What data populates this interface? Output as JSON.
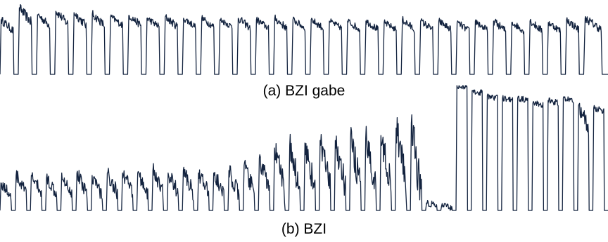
{
  "captions": {
    "a": "(a) BZI gabe",
    "b": "(b) BZI"
  },
  "colors": {
    "line": "#13233f",
    "background": "#ffffff"
  },
  "chart_data": [
    {
      "type": "line",
      "title": "(a) BZI gabe",
      "xlabel": "",
      "ylabel": "",
      "axes_visible": false,
      "grid": false,
      "ylim": [
        0,
        1
      ],
      "cycles": [
        {
          "t0": 0.0,
          "peak": 0.78,
          "floor": 0.62,
          "dip": 0.0
        },
        {
          "t0": 0.03,
          "peak": 0.95,
          "floor": 0.74,
          "dip": 0.0
        },
        {
          "t0": 0.06,
          "peak": 0.85,
          "floor": 0.7,
          "dip": 0.0
        },
        {
          "t0": 0.09,
          "peak": 0.9,
          "floor": 0.72,
          "dip": 0.0
        },
        {
          "t0": 0.12,
          "peak": 0.88,
          "floor": 0.7,
          "dip": 0.0
        },
        {
          "t0": 0.15,
          "peak": 0.86,
          "floor": 0.7,
          "dip": 0.0
        },
        {
          "t0": 0.18,
          "peak": 0.82,
          "floor": 0.7,
          "dip": 0.0
        },
        {
          "t0": 0.21,
          "peak": 0.84,
          "floor": 0.7,
          "dip": 0.0
        },
        {
          "t0": 0.24,
          "peak": 0.8,
          "floor": 0.68,
          "dip": 0.0
        },
        {
          "t0": 0.27,
          "peak": 0.82,
          "floor": 0.68,
          "dip": 0.0
        },
        {
          "t0": 0.3,
          "peak": 0.8,
          "floor": 0.68,
          "dip": 0.0
        },
        {
          "t0": 0.33,
          "peak": 0.8,
          "floor": 0.68,
          "dip": 0.0
        },
        {
          "t0": 0.36,
          "peak": 0.78,
          "floor": 0.68,
          "dip": 0.0
        },
        {
          "t0": 0.39,
          "peak": 0.8,
          "floor": 0.66,
          "dip": 0.0
        },
        {
          "t0": 0.42,
          "peak": 0.78,
          "floor": 0.66,
          "dip": 0.0
        },
        {
          "t0": 0.45,
          "peak": 0.8,
          "floor": 0.66,
          "dip": 0.0
        },
        {
          "t0": 0.48,
          "peak": 0.78,
          "floor": 0.66,
          "dip": 0.0
        },
        {
          "t0": 0.51,
          "peak": 0.78,
          "floor": 0.66,
          "dip": 0.0
        },
        {
          "t0": 0.54,
          "peak": 0.76,
          "floor": 0.66,
          "dip": 0.0
        },
        {
          "t0": 0.57,
          "peak": 0.76,
          "floor": 0.64,
          "dip": 0.0
        },
        {
          "t0": 0.6,
          "peak": 0.76,
          "floor": 0.64,
          "dip": 0.0
        },
        {
          "t0": 0.63,
          "peak": 0.74,
          "floor": 0.64,
          "dip": 0.0
        },
        {
          "t0": 0.66,
          "peak": 0.78,
          "floor": 0.64,
          "dip": 0.0
        },
        {
          "t0": 0.69,
          "peak": 0.76,
          "floor": 0.64,
          "dip": 0.0
        },
        {
          "t0": 0.72,
          "peak": 0.76,
          "floor": 0.64,
          "dip": 0.0
        },
        {
          "t0": 0.75,
          "peak": 0.74,
          "floor": 0.62,
          "dip": 0.0
        },
        {
          "t0": 0.78,
          "peak": 0.76,
          "floor": 0.62,
          "dip": 0.0
        },
        {
          "t0": 0.81,
          "peak": 0.76,
          "floor": 0.62,
          "dip": 0.0
        },
        {
          "t0": 0.84,
          "peak": 0.74,
          "floor": 0.62,
          "dip": 0.0
        },
        {
          "t0": 0.87,
          "peak": 0.76,
          "floor": 0.62,
          "dip": 0.0
        },
        {
          "t0": 0.9,
          "peak": 0.74,
          "floor": 0.62,
          "dip": 0.0
        },
        {
          "t0": 0.93,
          "peak": 0.78,
          "floor": 0.64,
          "dip": 0.0
        },
        {
          "t0": 0.96,
          "peak": 0.8,
          "floor": 0.64,
          "dip": 0.0
        }
      ]
    },
    {
      "type": "line",
      "title": "(b) BZI",
      "xlabel": "",
      "ylabel": "",
      "axes_visible": false,
      "grid": false,
      "ylim": [
        0,
        1
      ],
      "cycles": [
        {
          "t0": 0.0,
          "peak": 0.22,
          "floor": 0.12,
          "dip": 0.0
        },
        {
          "t0": 0.025,
          "peak": 0.28,
          "floor": 0.14,
          "dip": 0.0
        },
        {
          "t0": 0.05,
          "peak": 0.28,
          "floor": 0.14,
          "dip": 0.0
        },
        {
          "t0": 0.075,
          "peak": 0.26,
          "floor": 0.14,
          "dip": 0.0
        },
        {
          "t0": 0.1,
          "peak": 0.3,
          "floor": 0.14,
          "dip": 0.0
        },
        {
          "t0": 0.125,
          "peak": 0.3,
          "floor": 0.14,
          "dip": 0.0
        },
        {
          "t0": 0.15,
          "peak": 0.28,
          "floor": 0.12,
          "dip": 0.0
        },
        {
          "t0": 0.175,
          "peak": 0.3,
          "floor": 0.14,
          "dip": 0.0
        },
        {
          "t0": 0.2,
          "peak": 0.3,
          "floor": 0.14,
          "dip": 0.0
        },
        {
          "t0": 0.225,
          "peak": 0.3,
          "floor": 0.14,
          "dip": 0.0
        },
        {
          "t0": 0.25,
          "peak": 0.32,
          "floor": 0.14,
          "dip": 0.0
        },
        {
          "t0": 0.275,
          "peak": 0.3,
          "floor": 0.14,
          "dip": 0.0
        },
        {
          "t0": 0.3,
          "peak": 0.32,
          "floor": 0.14,
          "dip": 0.0
        },
        {
          "t0": 0.325,
          "peak": 0.3,
          "floor": 0.14,
          "dip": 0.0
        },
        {
          "t0": 0.35,
          "peak": 0.3,
          "floor": 0.12,
          "dip": 0.0
        },
        {
          "t0": 0.375,
          "peak": 0.32,
          "floor": 0.12,
          "dip": 0.0
        },
        {
          "t0": 0.4,
          "peak": 0.36,
          "floor": 0.14,
          "dip": 0.0
        },
        {
          "t0": 0.425,
          "peak": 0.42,
          "floor": 0.16,
          "dip": 0.0
        },
        {
          "t0": 0.45,
          "peak": 0.5,
          "floor": 0.16,
          "dip": 0.0
        },
        {
          "t0": 0.475,
          "peak": 0.52,
          "floor": 0.16,
          "dip": 0.0
        },
        {
          "t0": 0.5,
          "peak": 0.54,
          "floor": 0.16,
          "dip": 0.0
        },
        {
          "t0": 0.525,
          "peak": 0.56,
          "floor": 0.18,
          "dip": 0.0
        },
        {
          "t0": 0.55,
          "peak": 0.56,
          "floor": 0.18,
          "dip": 0.0
        },
        {
          "t0": 0.575,
          "peak": 0.58,
          "floor": 0.18,
          "dip": 0.0
        },
        {
          "t0": 0.6,
          "peak": 0.58,
          "floor": 0.2,
          "dip": 0.0
        },
        {
          "t0": 0.625,
          "peak": 0.6,
          "floor": 0.2,
          "dip": 0.0
        },
        {
          "t0": 0.65,
          "peak": 0.66,
          "floor": 0.22,
          "dip": 0.0
        },
        {
          "t0": 0.675,
          "peak": 0.7,
          "floor": 0.1,
          "dip": 0.0
        },
        {
          "t0": 0.7,
          "peak": 0.06,
          "floor": 0.04,
          "dip": 0.0
        },
        {
          "t0": 0.725,
          "peak": 0.04,
          "floor": 0.02,
          "dip": 0.0
        },
        {
          "t0": 0.75,
          "peak": 1.0,
          "floor": 0.98,
          "dip": 0.0
        },
        {
          "t0": 0.775,
          "peak": 0.96,
          "floor": 0.94,
          "dip": 0.0
        },
        {
          "t0": 0.8,
          "peak": 0.92,
          "floor": 0.9,
          "dip": 0.0
        },
        {
          "t0": 0.825,
          "peak": 0.9,
          "floor": 0.88,
          "dip": 0.0
        },
        {
          "t0": 0.85,
          "peak": 0.9,
          "floor": 0.88,
          "dip": 0.0
        },
        {
          "t0": 0.875,
          "peak": 0.86,
          "floor": 0.84,
          "dip": 0.0
        },
        {
          "t0": 0.9,
          "peak": 0.88,
          "floor": 0.86,
          "dip": 0.0
        },
        {
          "t0": 0.925,
          "peak": 0.9,
          "floor": 0.88,
          "dip": 0.0
        },
        {
          "t0": 0.95,
          "peak": 0.84,
          "floor": 0.66,
          "dip": 0.0
        },
        {
          "t0": 0.975,
          "peak": 0.82,
          "floor": 0.8,
          "dip": 0.0
        }
      ]
    }
  ]
}
